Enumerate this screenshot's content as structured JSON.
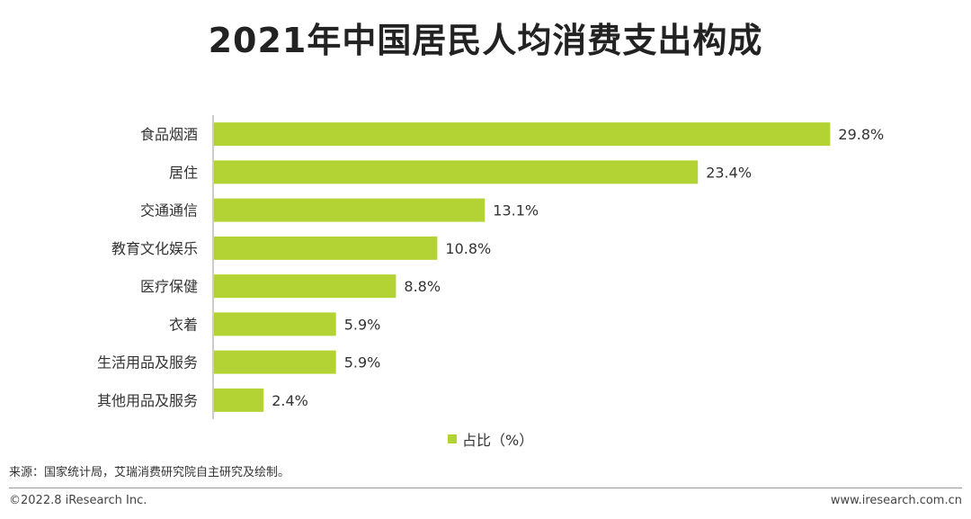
{
  "colors": {
    "bar": "#b3d334",
    "axis": "#999999",
    "text": "#333333"
  },
  "chart_data": {
    "type": "bar",
    "orientation": "horizontal",
    "title": "2021年中国居民人均消费支出构成",
    "categories": [
      "食品烟酒",
      "居住",
      "交通通信",
      "教育文化娱乐",
      "医疗保健",
      "衣着",
      "生活用品及服务",
      "其他用品及服务"
    ],
    "values": [
      29.8,
      23.4,
      13.1,
      10.8,
      8.8,
      5.9,
      5.9,
      2.4
    ],
    "value_labels": [
      "29.8%",
      "23.4%",
      "13.1%",
      "10.8%",
      "8.8%",
      "5.9%",
      "5.9%",
      "2.4%"
    ],
    "series": [
      {
        "name": "占比（%）",
        "values": [
          29.8,
          23.4,
          13.1,
          10.8,
          8.8,
          5.9,
          5.9,
          2.4
        ]
      }
    ],
    "xlim": [
      0,
      30
    ],
    "legend_position": "bottom-center",
    "xlabel": "",
    "ylabel": ""
  },
  "legend": {
    "label": "占比（%）"
  },
  "footer": {
    "source": "来源：国家统计局，艾瑞消费研究院自主研究及绘制。",
    "copyright": "©2022.8 iResearch Inc.",
    "website": "www.iresearch.com.cn"
  }
}
